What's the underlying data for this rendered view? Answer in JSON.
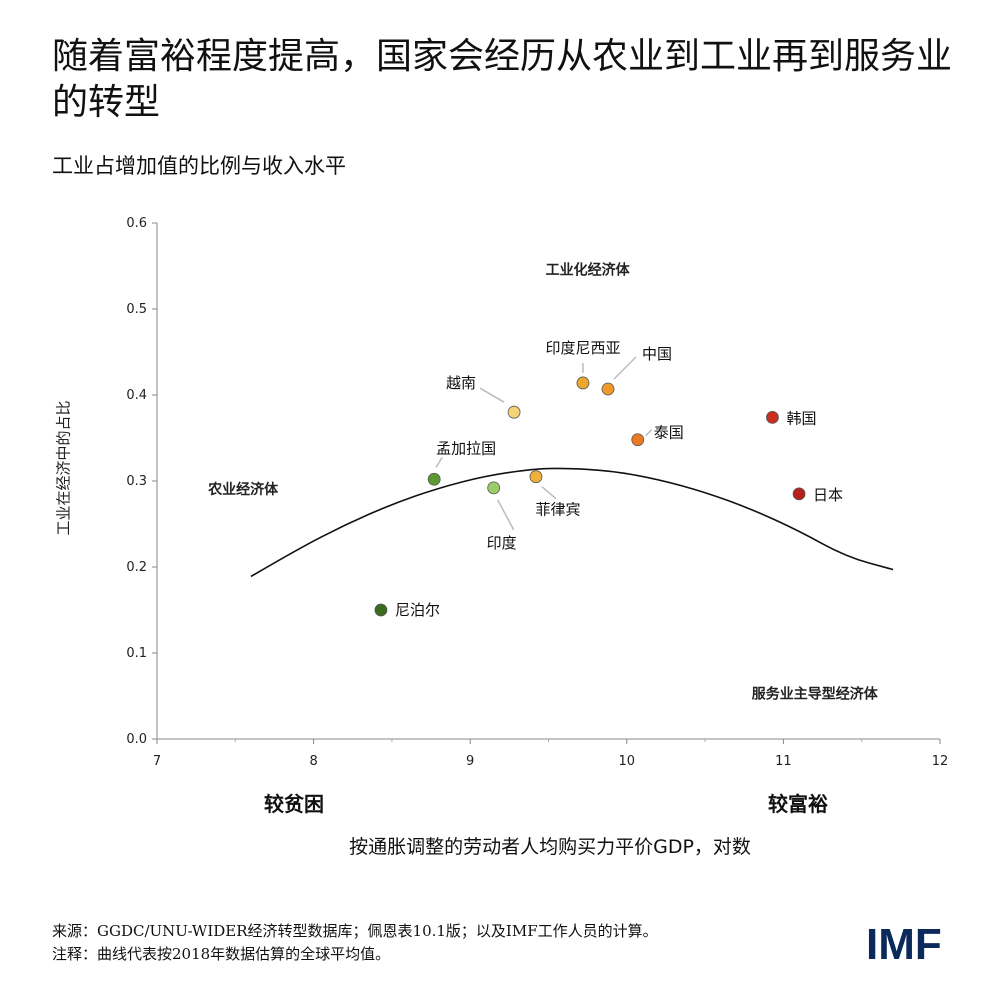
{
  "title": "随着富裕程度提高，国家会经历从农业到工业再到服务业的转型",
  "subtitle": "工业占增加值的比例与收入水平",
  "x_caption_left": "较贫困",
  "x_caption_right": "较富裕",
  "source": "来源：GGDC/UNU-WIDER经济转型数据库；佩恩表10.1版；以及IMF工作人员的计算。",
  "note": "注释：曲线代表按2018年数据估算的全球平均值。",
  "logo": "IMF",
  "chart_data": {
    "type": "scatter",
    "xlabel": "按通胀调整的劳动者人均购买力平价GDP，对数",
    "ylabel": "工业在经济中的占比",
    "xlim": [
      7,
      12
    ],
    "ylim": [
      0,
      0.6
    ],
    "xticks": [
      "7",
      "8",
      "9",
      "10",
      "11",
      "12"
    ],
    "yticks": [
      "0.0",
      "0.1",
      "0.2",
      "0.3",
      "0.4",
      "0.5",
      "0.6"
    ],
    "grid": false,
    "region_labels": [
      {
        "text": "工业化经济体",
        "x": 9.75,
        "y": 0.54
      },
      {
        "text": "农业经济体",
        "x": 7.55,
        "y": 0.285
      },
      {
        "text": "服务业主导型经济体",
        "x": 11.2,
        "y": 0.047
      }
    ],
    "points": [
      {
        "name": "尼泊尔",
        "x": 8.43,
        "y": 0.15,
        "color": "#3b6b1e"
      },
      {
        "name": "孟加拉国",
        "x": 8.77,
        "y": 0.302,
        "color": "#5a9a2e"
      },
      {
        "name": "印度",
        "x": 9.15,
        "y": 0.292,
        "color": "#9ccc6a"
      },
      {
        "name": "越南",
        "x": 9.28,
        "y": 0.38,
        "color": "#f2d57a"
      },
      {
        "name": "菲律宾",
        "x": 9.42,
        "y": 0.305,
        "color": "#f0b13a"
      },
      {
        "name": "印度尼西亚",
        "x": 9.72,
        "y": 0.414,
        "color": "#efa62c"
      },
      {
        "name": "中国",
        "x": 9.88,
        "y": 0.407,
        "color": "#ee9a2a"
      },
      {
        "name": "泰国",
        "x": 10.07,
        "y": 0.348,
        "color": "#ec7a25"
      },
      {
        "name": "韩国",
        "x": 10.93,
        "y": 0.374,
        "color": "#c92f1f"
      },
      {
        "name": "日本",
        "x": 11.1,
        "y": 0.285,
        "color": "#b5211a"
      }
    ],
    "curve": {
      "x": [
        7.6,
        7.9,
        8.2,
        8.5,
        8.8,
        9.1,
        9.4,
        9.6,
        9.9,
        10.2,
        10.5,
        10.8,
        11.1,
        11.4,
        11.7
      ],
      "y": [
        0.189,
        0.221,
        0.249,
        0.273,
        0.292,
        0.306,
        0.314,
        0.315,
        0.312,
        0.302,
        0.287,
        0.267,
        0.242,
        0.212,
        0.197
      ]
    }
  }
}
